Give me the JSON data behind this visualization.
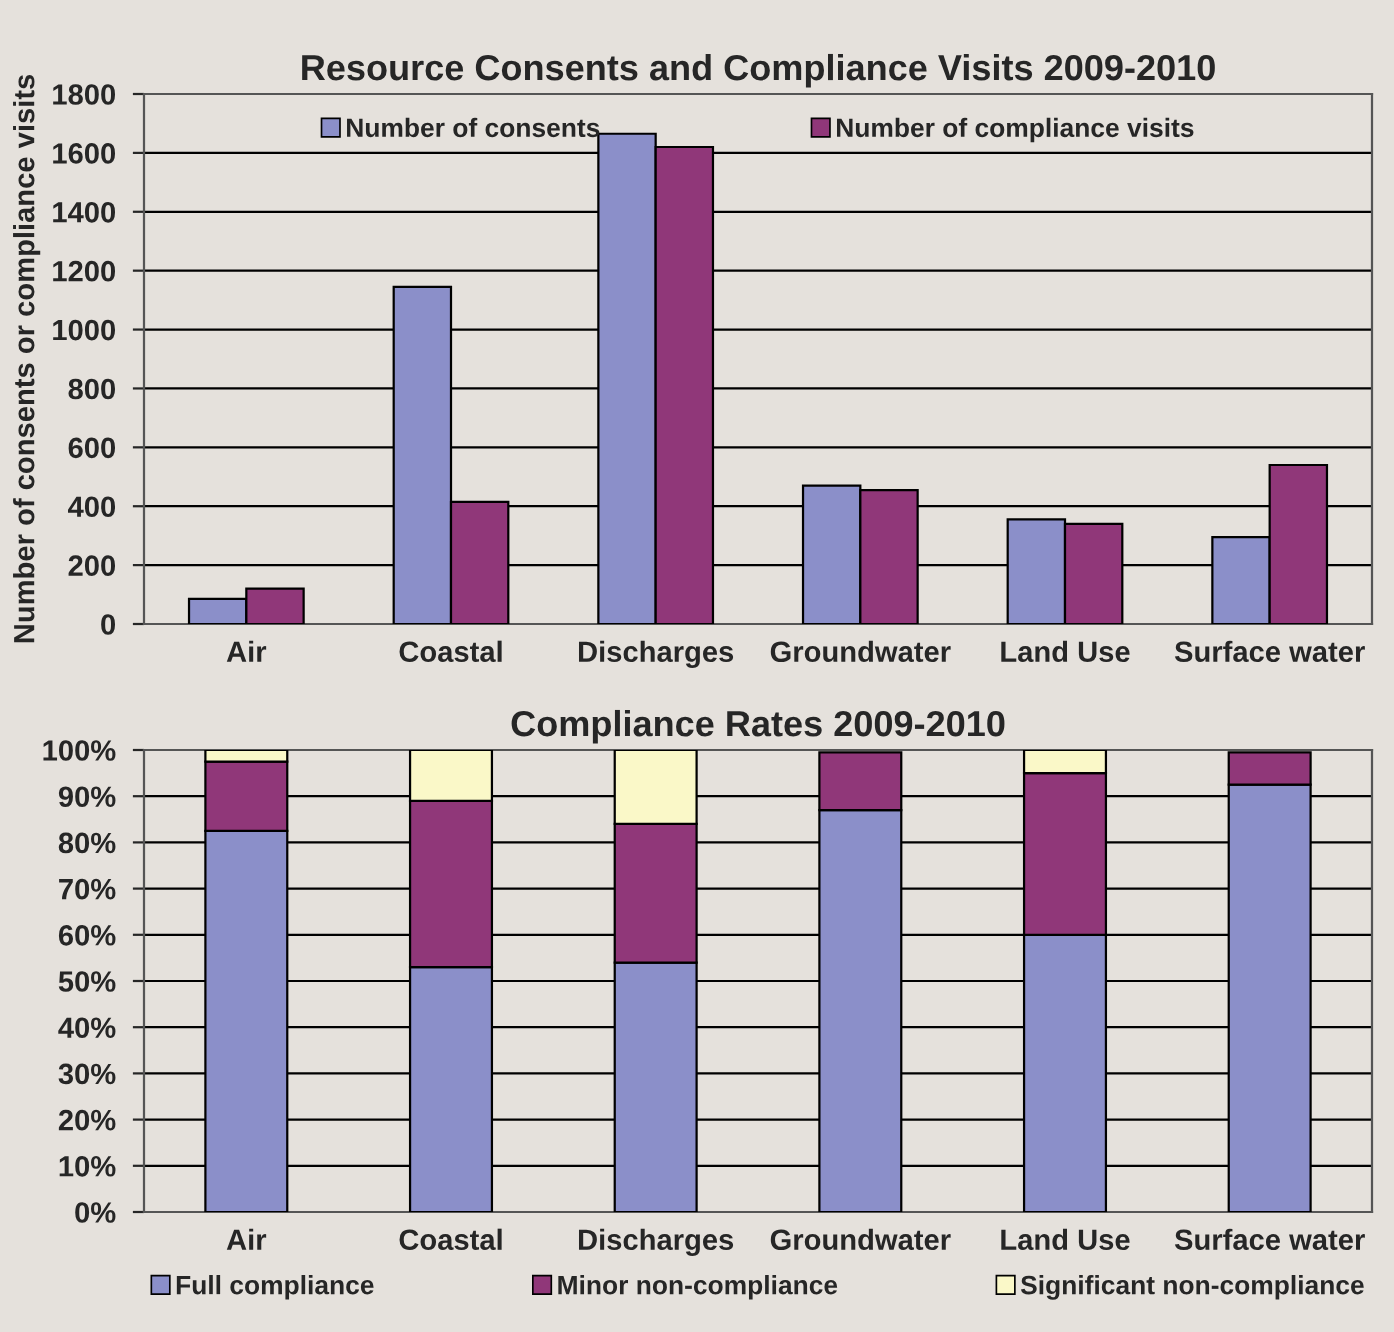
{
  "chart_data": [
    {
      "type": "bar",
      "title": "Resource Consents and Compliance Visits 2009-2010",
      "ylabel": "Number of consents or compliance visits",
      "categories": [
        "Air",
        "Coastal",
        "Discharges",
        "Groundwater",
        "Land Use",
        "Surface water"
      ],
      "series": [
        {
          "name": "Number of consents",
          "color": "#8b8fc9",
          "values": [
            85,
            1145,
            1665,
            470,
            355,
            295
          ]
        },
        {
          "name": "Number of compliance visits",
          "color": "#903779",
          "values": [
            120,
            415,
            1620,
            455,
            340,
            540
          ]
        }
      ],
      "ylim": [
        0,
        1800
      ],
      "yticks": [
        0,
        200,
        400,
        600,
        800,
        1000,
        1200,
        1400,
        1600,
        1800
      ],
      "grid": "y",
      "legend": "top"
    },
    {
      "type": "bar",
      "title": "Compliance Rates 2009-2010",
      "stacked": true,
      "categories": [
        "Air",
        "Coastal",
        "Discharges",
        "Groundwater",
        "Land Use",
        "Surface water"
      ],
      "series": [
        {
          "name": "Full compliance",
          "color": "#8b8fc9",
          "values": [
            82.5,
            53,
            54,
            87,
            60,
            92.5
          ]
        },
        {
          "name": "Minor non-compliance",
          "color": "#903779",
          "values": [
            15,
            36,
            30,
            12.5,
            35,
            7
          ]
        },
        {
          "name": "Significant non-compliance",
          "color": "#faf8c8",
          "values": [
            2.5,
            11,
            16,
            null,
            5,
            null
          ]
        }
      ],
      "ylim": [
        0,
        100
      ],
      "yticks": [
        {
          "value": 0,
          "label": "0%"
        },
        {
          "value": 10,
          "label": "10%"
        },
        {
          "value": 20,
          "label": "20%"
        },
        {
          "value": 30,
          "label": "30%"
        },
        {
          "value": 40,
          "label": "40%"
        },
        {
          "value": 50,
          "label": "50%"
        },
        {
          "value": 60,
          "label": "60%"
        },
        {
          "value": 70,
          "label": "70%"
        },
        {
          "value": 80,
          "label": "80%"
        },
        {
          "value": 90,
          "label": "90%"
        },
        {
          "value": 100,
          "label": "100%"
        }
      ],
      "grid": "y",
      "legend": "bottom"
    }
  ]
}
